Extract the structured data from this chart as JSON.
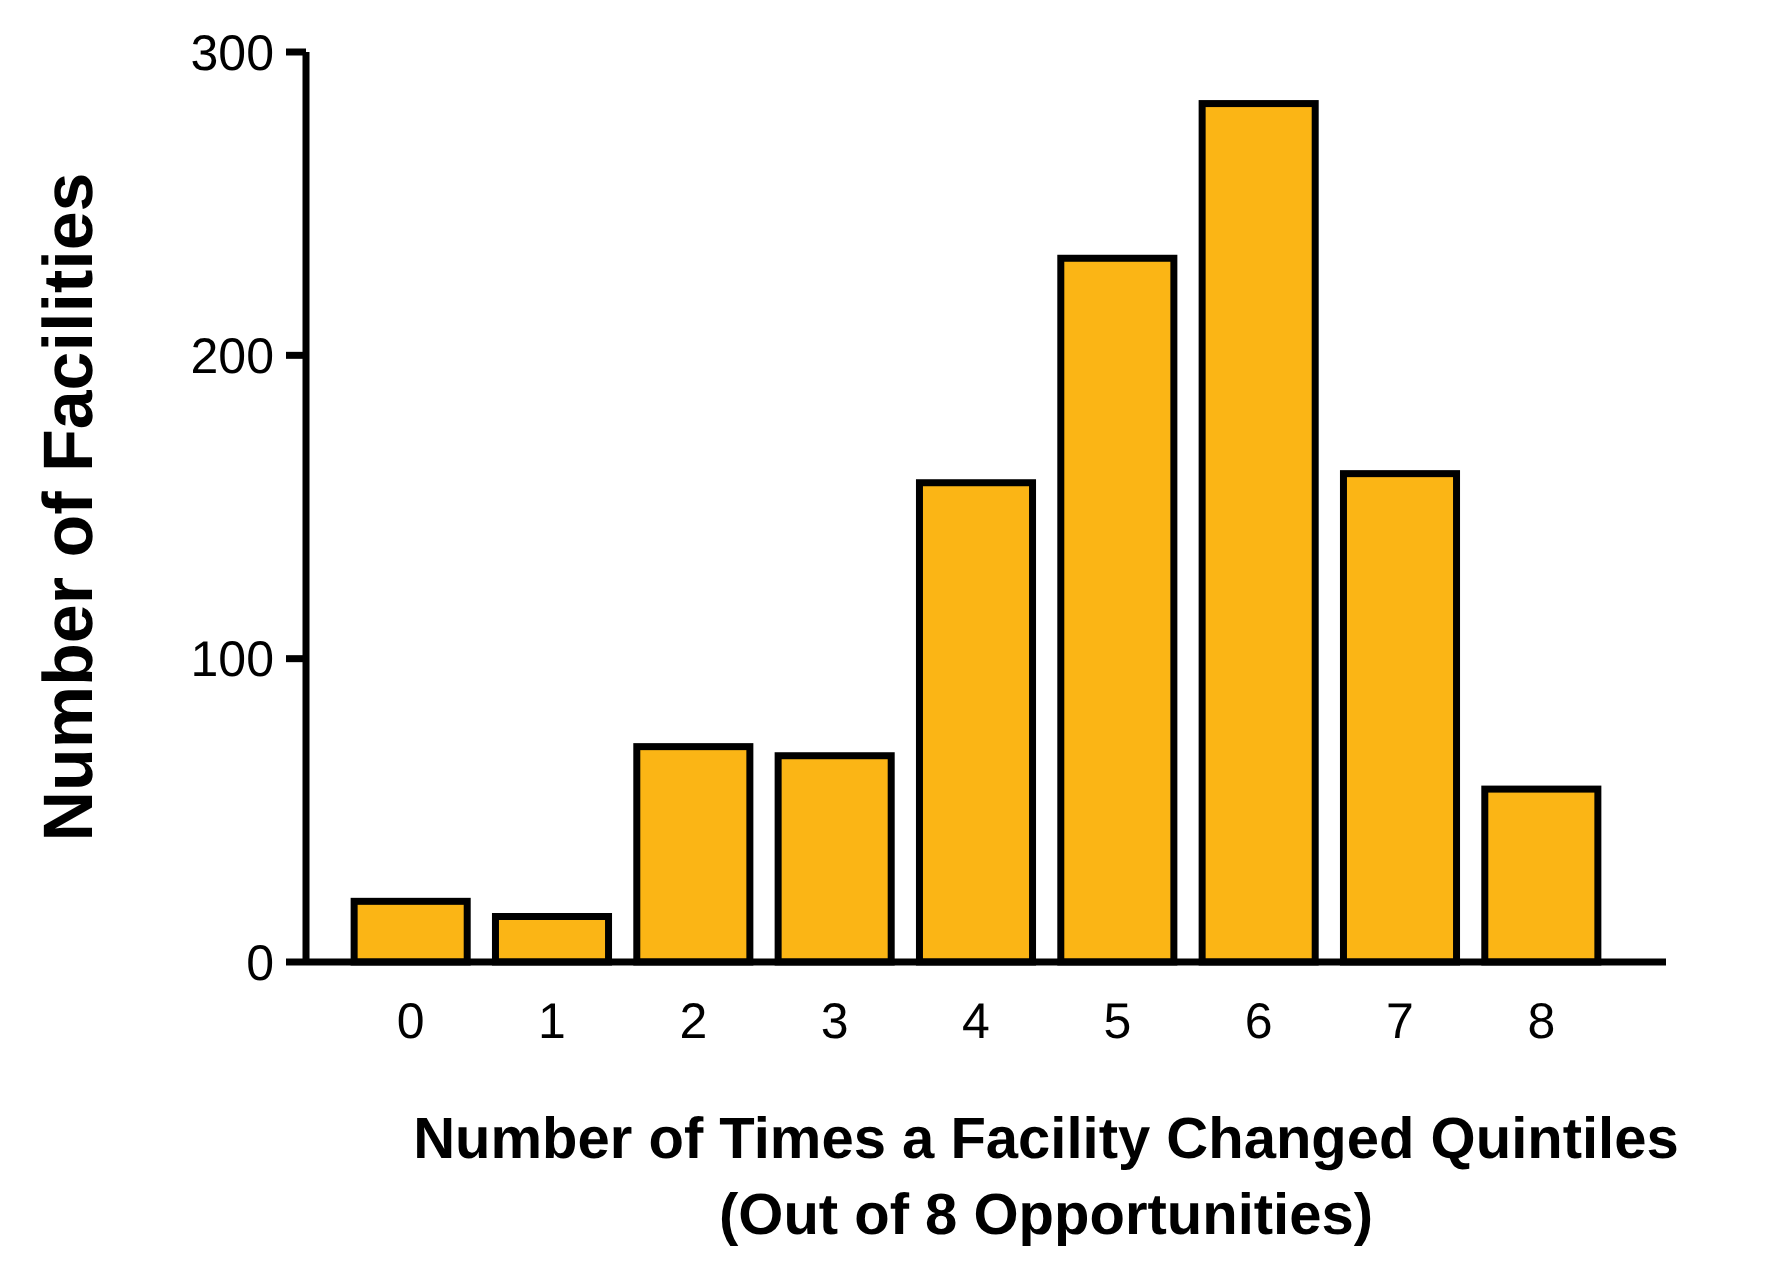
{
  "chart_data": {
    "type": "bar",
    "xlabel": "Number of Times a Facility Changed Quintiles\n(Out of 8 Opportunities)",
    "ylabel": "Number of Facilities",
    "categories": [
      "0",
      "1",
      "2",
      "3",
      "4",
      "5",
      "6",
      "7",
      "8"
    ],
    "values": [
      20,
      15,
      71,
      68,
      158,
      232,
      283,
      161,
      57
    ],
    "color": "#fbb515",
    "ylim": [
      0,
      300
    ],
    "yticks": [
      0,
      100,
      200,
      300
    ],
    "grid": false
  }
}
